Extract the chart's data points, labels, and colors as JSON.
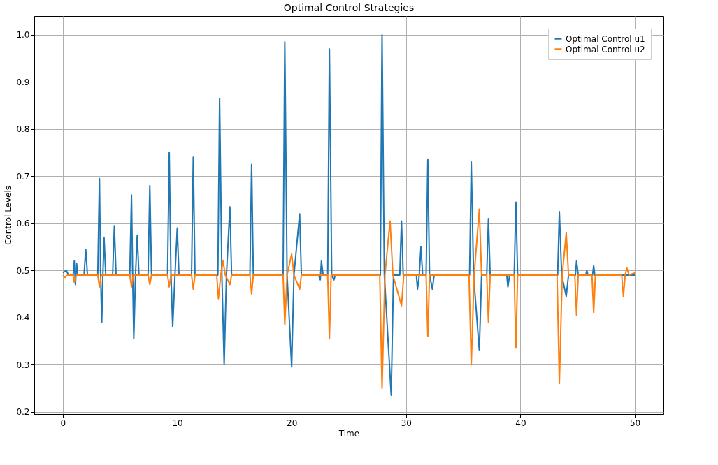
{
  "chart_data": {
    "type": "line",
    "title": "Optimal Control Strategies",
    "xlabel": "Time",
    "ylabel": "Control Levels",
    "xlim": [
      -2.5,
      52.5
    ],
    "xticks": [
      0,
      10,
      20,
      30,
      40,
      50
    ],
    "ylim": [
      0.195,
      1.04
    ],
    "yticks": [
      0.2,
      0.3,
      0.4,
      0.5,
      0.6,
      0.7,
      0.8,
      0.9,
      {
        "value": 1.0,
        "label": "1.0"
      }
    ],
    "grid": true,
    "legend": "top right",
    "marker": "none",
    "line_style": "solid",
    "series": [
      {
        "name": "Optimal Control u1",
        "color": "#1f77b4",
        "x": [
          0,
          0.3,
          0.5,
          0.9,
          1.0,
          1.1,
          1.2,
          1.3,
          1.85,
          2.0,
          2.15,
          3.05,
          3.2,
          3.3,
          3.4,
          3.5,
          3.6,
          3.75,
          4.35,
          4.5,
          4.65,
          5.85,
          6.0,
          6.1,
          6.2,
          6.35,
          6.5,
          6.65,
          7.45,
          7.6,
          7.75,
          9.15,
          9.3,
          9.45,
          9.6,
          9.8,
          10.0,
          10.15,
          11.25,
          11.4,
          11.55,
          13.55,
          13.7,
          13.9,
          14.1,
          14.3,
          14.6,
          14.75,
          16.35,
          16.5,
          16.65,
          19.25,
          19.4,
          19.6,
          20.0,
          20.2,
          20.7,
          20.85,
          22.35,
          22.5,
          22.6,
          22.75,
          23.15,
          23.3,
          23.5,
          23.7,
          23.8,
          27.75,
          27.9,
          28.1,
          28.7,
          28.9,
          29.45,
          29.6,
          29.75,
          30.9,
          31.0,
          31.15,
          31.3,
          31.45,
          31.75,
          31.9,
          32.05,
          32.3,
          32.45,
          35.55,
          35.7,
          35.9,
          36.4,
          36.6,
          37.05,
          37.2,
          37.35,
          38.8,
          38.9,
          39.05,
          39.45,
          39.6,
          39.75,
          43.25,
          43.4,
          43.6,
          44.0,
          44.2,
          44.8,
          44.9,
          45.05,
          45.7,
          45.8,
          45.9,
          46.3,
          46.4,
          46.5,
          50
        ],
        "values": [
          0.495,
          0.5,
          0.49,
          0.49,
          0.52,
          0.47,
          0.515,
          0.49,
          0.49,
          0.545,
          0.49,
          0.49,
          0.695,
          0.49,
          0.39,
          0.49,
          0.57,
          0.49,
          0.49,
          0.595,
          0.49,
          0.49,
          0.66,
          0.49,
          0.355,
          0.49,
          0.575,
          0.49,
          0.49,
          0.68,
          0.49,
          0.49,
          0.75,
          0.49,
          0.38,
          0.49,
          0.59,
          0.49,
          0.49,
          0.74,
          0.49,
          0.49,
          0.865,
          0.49,
          0.3,
          0.49,
          0.635,
          0.49,
          0.49,
          0.725,
          0.49,
          0.49,
          0.985,
          0.49,
          0.295,
          0.49,
          0.62,
          0.49,
          0.49,
          0.48,
          0.52,
          0.49,
          0.49,
          0.97,
          0.49,
          0.48,
          0.49,
          0.49,
          1.0,
          0.49,
          0.235,
          0.49,
          0.49,
          0.605,
          0.49,
          0.49,
          0.46,
          0.49,
          0.55,
          0.49,
          0.49,
          0.735,
          0.49,
          0.46,
          0.49,
          0.49,
          0.73,
          0.49,
          0.33,
          0.49,
          0.49,
          0.61,
          0.49,
          0.49,
          0.465,
          0.49,
          0.49,
          0.645,
          0.49,
          0.49,
          0.625,
          0.49,
          0.445,
          0.49,
          0.49,
          0.52,
          0.49,
          0.49,
          0.5,
          0.49,
          0.49,
          0.51,
          0.49,
          0.49
        ]
      },
      {
        "name": "Optimal Control u2",
        "color": "#ff7f0e",
        "x": [
          0,
          0.2,
          0.4,
          0.9,
          1.0,
          1.15,
          3.05,
          3.2,
          3.35,
          5.85,
          6.0,
          6.15,
          7.45,
          7.6,
          7.75,
          9.15,
          9.3,
          9.45,
          11.25,
          11.4,
          11.55,
          13.45,
          13.6,
          13.8,
          14.0,
          14.2,
          14.6,
          14.75,
          16.35,
          16.5,
          16.65,
          19.25,
          19.4,
          19.6,
          20.0,
          20.2,
          20.7,
          20.85,
          23.15,
          23.3,
          23.45,
          27.7,
          27.9,
          28.15,
          28.6,
          28.85,
          29.6,
          29.8,
          31.75,
          31.9,
          32.05,
          35.5,
          35.7,
          35.95,
          36.4,
          36.6,
          37.05,
          37.2,
          37.35,
          39.45,
          39.6,
          39.75,
          43.2,
          43.4,
          43.65,
          44.0,
          44.2,
          44.75,
          44.9,
          45.05,
          46.25,
          46.4,
          46.55,
          48.85,
          49.0,
          49.15,
          49.3,
          49.5,
          50
        ],
        "values": [
          0.49,
          0.485,
          0.49,
          0.49,
          0.475,
          0.49,
          0.49,
          0.465,
          0.49,
          0.49,
          0.465,
          0.49,
          0.49,
          0.47,
          0.49,
          0.49,
          0.465,
          0.49,
          0.49,
          0.46,
          0.49,
          0.49,
          0.44,
          0.49,
          0.52,
          0.49,
          0.47,
          0.49,
          0.49,
          0.45,
          0.49,
          0.49,
          0.385,
          0.49,
          0.535,
          0.49,
          0.46,
          0.49,
          0.49,
          0.355,
          0.49,
          0.49,
          0.25,
          0.49,
          0.605,
          0.49,
          0.425,
          0.49,
          0.49,
          0.36,
          0.49,
          0.49,
          0.3,
          0.49,
          0.63,
          0.49,
          0.49,
          0.39,
          0.49,
          0.49,
          0.335,
          0.49,
          0.49,
          0.26,
          0.49,
          0.58,
          0.49,
          0.49,
          0.405,
          0.49,
          0.49,
          0.41,
          0.49,
          0.49,
          0.445,
          0.49,
          0.505,
          0.49,
          0.495
        ]
      }
    ]
  }
}
